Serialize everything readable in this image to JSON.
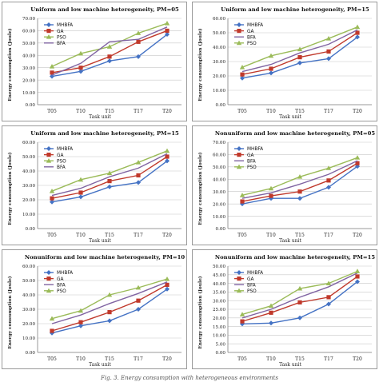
{
  "colors": {
    "MHBFA": "#4472c4",
    "GA": "#c0392b",
    "PSO": "#9bbb59",
    "BFA": "#8064a2"
  },
  "caption": "Fig. 3. Energy consumption with heterogeneous environments",
  "chart_data": [
    {
      "type": "line",
      "title": "Uniform and low machine heterogeneity, PM=05",
      "xlabel": "Task unit",
      "ylabel": "Energy consumption (Joule)",
      "categories": [
        "T05",
        "T10",
        "T15",
        "T17",
        "T20"
      ],
      "ylim": [
        0,
        70
      ],
      "ytick_step": 10,
      "yticks": [
        "0.00",
        "10.00",
        "20.00",
        "30.00",
        "40.00",
        "50.00",
        "60.00",
        "70.00"
      ],
      "grid": true,
      "legend": "left",
      "series": [
        {
          "name": "MHBFA",
          "marker": "diamond",
          "values": [
            23,
            27,
            35.5,
            39,
            57
          ]
        },
        {
          "name": "GA",
          "marker": "square",
          "values": [
            26,
            30,
            39,
            51,
            60
          ]
        },
        {
          "name": "PSO",
          "marker": "triangle",
          "values": [
            31,
            41.5,
            47,
            58,
            66
          ]
        },
        {
          "name": "BFA",
          "marker": "none",
          "values": [
            24,
            33.5,
            51,
            53,
            63
          ]
        }
      ]
    },
    {
      "type": "line",
      "title": "Uniform and low machine heterogeneity, PM=15",
      "xlabel": "Task unit",
      "ylabel": "Energy consumption (Joule)",
      "categories": [
        "T05",
        "T10",
        "T15",
        "T17",
        "T20"
      ],
      "ylim": [
        0,
        60
      ],
      "ytick_step": 10,
      "yticks": [
        "0.00",
        "10.00",
        "20.00",
        "30.00",
        "40.00",
        "50.00",
        "60.00"
      ],
      "grid": true,
      "legend": "left",
      "series": [
        {
          "name": "MHBFA",
          "marker": "diamond",
          "values": [
            18.5,
            22,
            29,
            32,
            47
          ]
        },
        {
          "name": "GA",
          "marker": "square",
          "values": [
            21,
            25,
            33,
            37,
            50
          ]
        },
        {
          "name": "BFA",
          "marker": "none",
          "values": [
            23,
            28,
            36,
            42,
            52
          ]
        },
        {
          "name": "PSO",
          "marker": "triangle",
          "values": [
            26,
            34,
            38.5,
            46,
            54
          ]
        }
      ]
    },
    {
      "type": "line",
      "title": "Uniform and low machine heterogeneity, PM=15",
      "xlabel": "Task unit",
      "ylabel": "Energy consumption (Joule)",
      "categories": [
        "T05",
        "T10",
        "T15",
        "T17",
        "T20"
      ],
      "ylim": [
        0,
        60
      ],
      "ytick_step": 10,
      "yticks": [
        "0.00",
        "10.00",
        "20.00",
        "30.00",
        "40.00",
        "50.00",
        "60.00"
      ],
      "grid": true,
      "legend": "left",
      "series": [
        {
          "name": "MHBFA",
          "marker": "diamond",
          "values": [
            18.5,
            22,
            29,
            32,
            47
          ]
        },
        {
          "name": "GA",
          "marker": "square",
          "values": [
            21,
            25,
            33,
            37,
            50
          ]
        },
        {
          "name": "PSO",
          "marker": "triangle",
          "values": [
            26,
            34,
            38.5,
            46,
            54
          ]
        },
        {
          "name": "BFA",
          "marker": "none",
          "values": [
            23,
            28,
            36,
            42,
            52
          ]
        }
      ]
    },
    {
      "type": "line",
      "title": "Nonuniform and low machine heterogeneity, PM=05",
      "xlabel": "Task unit",
      "ylabel": "Energy consumption (Joule)",
      "categories": [
        "T05",
        "T10",
        "T15",
        "T17",
        "T20"
      ],
      "ylim": [
        0,
        70
      ],
      "ytick_step": 10,
      "yticks": [
        "0.00",
        "10.00",
        "20.00",
        "30.00",
        "40.00",
        "50.00",
        "60.00",
        "70.00"
      ],
      "grid": true,
      "legend": "left",
      "series": [
        {
          "name": "MHBFA",
          "marker": "diamond",
          "values": [
            20,
            24.5,
            24.5,
            33.5,
            50.5
          ]
        },
        {
          "name": "GA",
          "marker": "square",
          "values": [
            22,
            26.5,
            30,
            39,
            53
          ]
        },
        {
          "name": "BFA",
          "marker": "none",
          "values": [
            24.5,
            29,
            36,
            44,
            55
          ]
        },
        {
          "name": "PSO",
          "marker": "triangle",
          "values": [
            27,
            32.5,
            42,
            49,
            57.5
          ]
        }
      ]
    },
    {
      "type": "line",
      "title": "Nonuniform and low machine heterogeneity, PM=10",
      "xlabel": "Task unit",
      "ylabel": "Energy consumption (Joule)",
      "categories": [
        "T05",
        "T10",
        "T15",
        "T17",
        "T20"
      ],
      "ylim": [
        0,
        60
      ],
      "ytick_step": 10,
      "yticks": [
        "0.00",
        "10.00",
        "20.00",
        "30.00",
        "40.00",
        "50.00",
        "60.00"
      ],
      "grid": true,
      "legend": "left",
      "series": [
        {
          "name": "MHBFA",
          "marker": "diamond",
          "values": [
            13.5,
            18.5,
            22,
            30,
            44
          ]
        },
        {
          "name": "GA",
          "marker": "square",
          "values": [
            15,
            21,
            28,
            36,
            47
          ]
        },
        {
          "name": "BFA",
          "marker": "none",
          "values": [
            20,
            26,
            34,
            41,
            49
          ]
        },
        {
          "name": "PSO",
          "marker": "triangle",
          "values": [
            23.5,
            29,
            40,
            45,
            51
          ]
        }
      ]
    },
    {
      "type": "line",
      "title": "Nonuniform and low machine heterogeneity, PM=15",
      "xlabel": "Task unit",
      "ylabel": "Energy consumption (Joule)",
      "categories": [
        "T05",
        "T10",
        "T15",
        "T17",
        "T20"
      ],
      "ylim": [
        0,
        50
      ],
      "ytick_step": 5,
      "yticks": [
        "0.00",
        "5.00",
        "10.00",
        "15.00",
        "20.00",
        "25.00",
        "30.00",
        "35.00",
        "40.00",
        "45.00",
        "50.00"
      ],
      "grid": true,
      "legend": "left",
      "series": [
        {
          "name": "MHBFA",
          "marker": "diamond",
          "values": [
            16.5,
            17,
            20,
            28,
            41
          ]
        },
        {
          "name": "GA",
          "marker": "square",
          "values": [
            18,
            23,
            29,
            32,
            44
          ]
        },
        {
          "name": "BFA",
          "marker": "none",
          "values": [
            20,
            25,
            32,
            38,
            46
          ]
        },
        {
          "name": "PSO",
          "marker": "triangle",
          "values": [
            22,
            27,
            37,
            40,
            47
          ]
        }
      ]
    }
  ]
}
